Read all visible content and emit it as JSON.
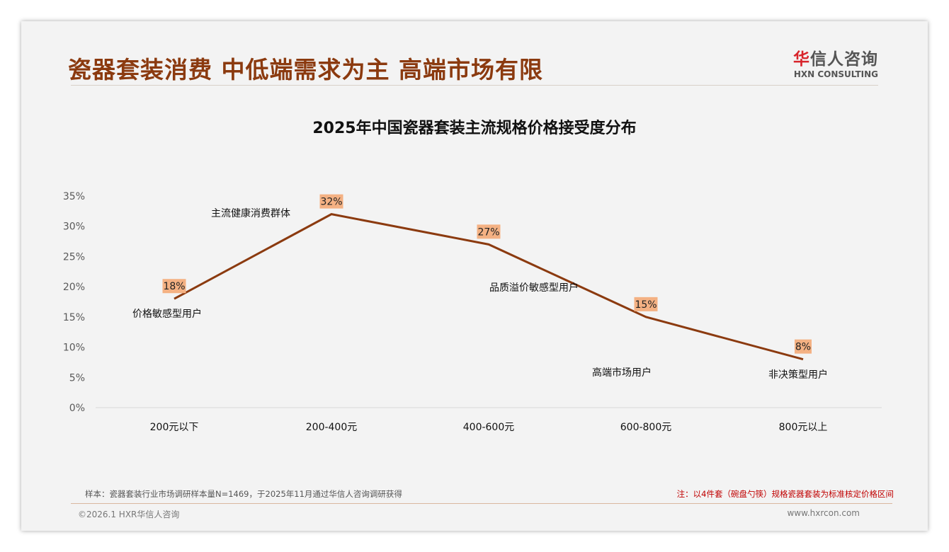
{
  "header": {
    "title": "瓷器套装消费 中低端需求为主 高端市场有限",
    "logo_cn_accent": "华",
    "logo_cn_rest": "信人咨询",
    "logo_en": "HXN CONSULTING"
  },
  "chart_data": {
    "type": "line",
    "title": "2025年中国瓷器套装主流规格价格接受度分布",
    "categories": [
      "200元以下",
      "200-400元",
      "400-600元",
      "600-800元",
      "800元以上"
    ],
    "values": [
      18,
      32,
      27,
      15,
      8
    ],
    "data_labels": [
      "18%",
      "32%",
      "27%",
      "15%",
      "8%"
    ],
    "annotations": [
      "价格敏感型用户",
      "主流健康消费群体",
      "品质溢价敏感型用户",
      "高端市场用户",
      "非决策型用户"
    ],
    "yticks": [
      "0%",
      "5%",
      "10%",
      "15%",
      "20%",
      "25%",
      "30%",
      "35%"
    ],
    "ylim": [
      0,
      35
    ],
    "ylabel": "",
    "xlabel": "",
    "grid": false,
    "line_color": "#8b3a0f",
    "label_bg": "#f4b183"
  },
  "footer": {
    "sample": "样本：瓷器套装行业市场调研样本量N=1469，于2025年11月通过华信人咨询调研获得",
    "note": "注：以4件套（碗盘勺筷）规格瓷器套装为标准核定价格区间",
    "copyright": "©2026.1 HXR华信人咨询",
    "url": "www.hxrcon.com"
  }
}
